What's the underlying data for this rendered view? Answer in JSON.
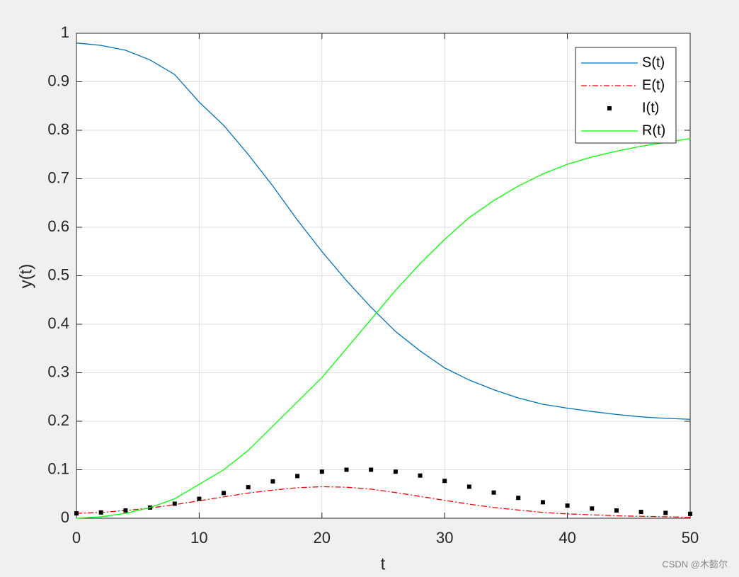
{
  "chart_data": {
    "type": "line",
    "x": [
      0,
      2,
      4,
      6,
      8,
      10,
      12,
      14,
      16,
      18,
      20,
      22,
      24,
      26,
      28,
      30,
      32,
      34,
      36,
      38,
      40,
      42,
      44,
      46,
      48,
      50
    ],
    "series": [
      {
        "name": "S(t)",
        "color": "#0072bd",
        "style": "solid",
        "values": [
          0.98,
          0.975,
          0.965,
          0.945,
          0.915,
          0.858,
          0.81,
          0.75,
          0.685,
          0.615,
          0.55,
          0.49,
          0.435,
          0.385,
          0.345,
          0.31,
          0.285,
          0.265,
          0.248,
          0.235,
          0.227,
          0.22,
          0.214,
          0.209,
          0.206,
          0.204
        ]
      },
      {
        "name": "E(t)",
        "color": "#ff0000",
        "style": "dashdot",
        "values": [
          0.01,
          0.012,
          0.016,
          0.021,
          0.028,
          0.036,
          0.044,
          0.052,
          0.058,
          0.063,
          0.065,
          0.064,
          0.06,
          0.053,
          0.045,
          0.037,
          0.029,
          0.022,
          0.017,
          0.012,
          0.009,
          0.007,
          0.005,
          0.004,
          0.003,
          0.002
        ]
      },
      {
        "name": "I(t)",
        "color": "#000000",
        "style": "marker",
        "values": [
          0.01,
          0.012,
          0.016,
          0.022,
          0.03,
          0.04,
          0.052,
          0.064,
          0.076,
          0.087,
          0.096,
          0.1,
          0.1,
          0.096,
          0.088,
          0.077,
          0.065,
          0.053,
          0.042,
          0.033,
          0.026,
          0.02,
          0.016,
          0.013,
          0.011,
          0.009
        ]
      },
      {
        "name": "R(t)",
        "color": "#00ff00",
        "style": "solid",
        "values": [
          0,
          0.003,
          0.01,
          0.022,
          0.04,
          0.07,
          0.1,
          0.14,
          0.19,
          0.24,
          0.29,
          0.35,
          0.41,
          0.47,
          0.525,
          0.575,
          0.62,
          0.655,
          0.685,
          0.71,
          0.73,
          0.745,
          0.757,
          0.767,
          0.775,
          0.783
        ]
      }
    ],
    "xlabel": "t",
    "ylabel": "y(t)",
    "xlim": [
      0,
      50
    ],
    "xticks": [
      0,
      10,
      20,
      30,
      40,
      50
    ],
    "ylim": [
      0,
      1
    ],
    "yticks": [
      0,
      0.1,
      0.2,
      0.3,
      0.4,
      0.5,
      0.6,
      0.7,
      0.8,
      0.9,
      1
    ],
    "grid": true,
    "legend": "northeast",
    "watermark": "CSDN @木懿尔"
  }
}
